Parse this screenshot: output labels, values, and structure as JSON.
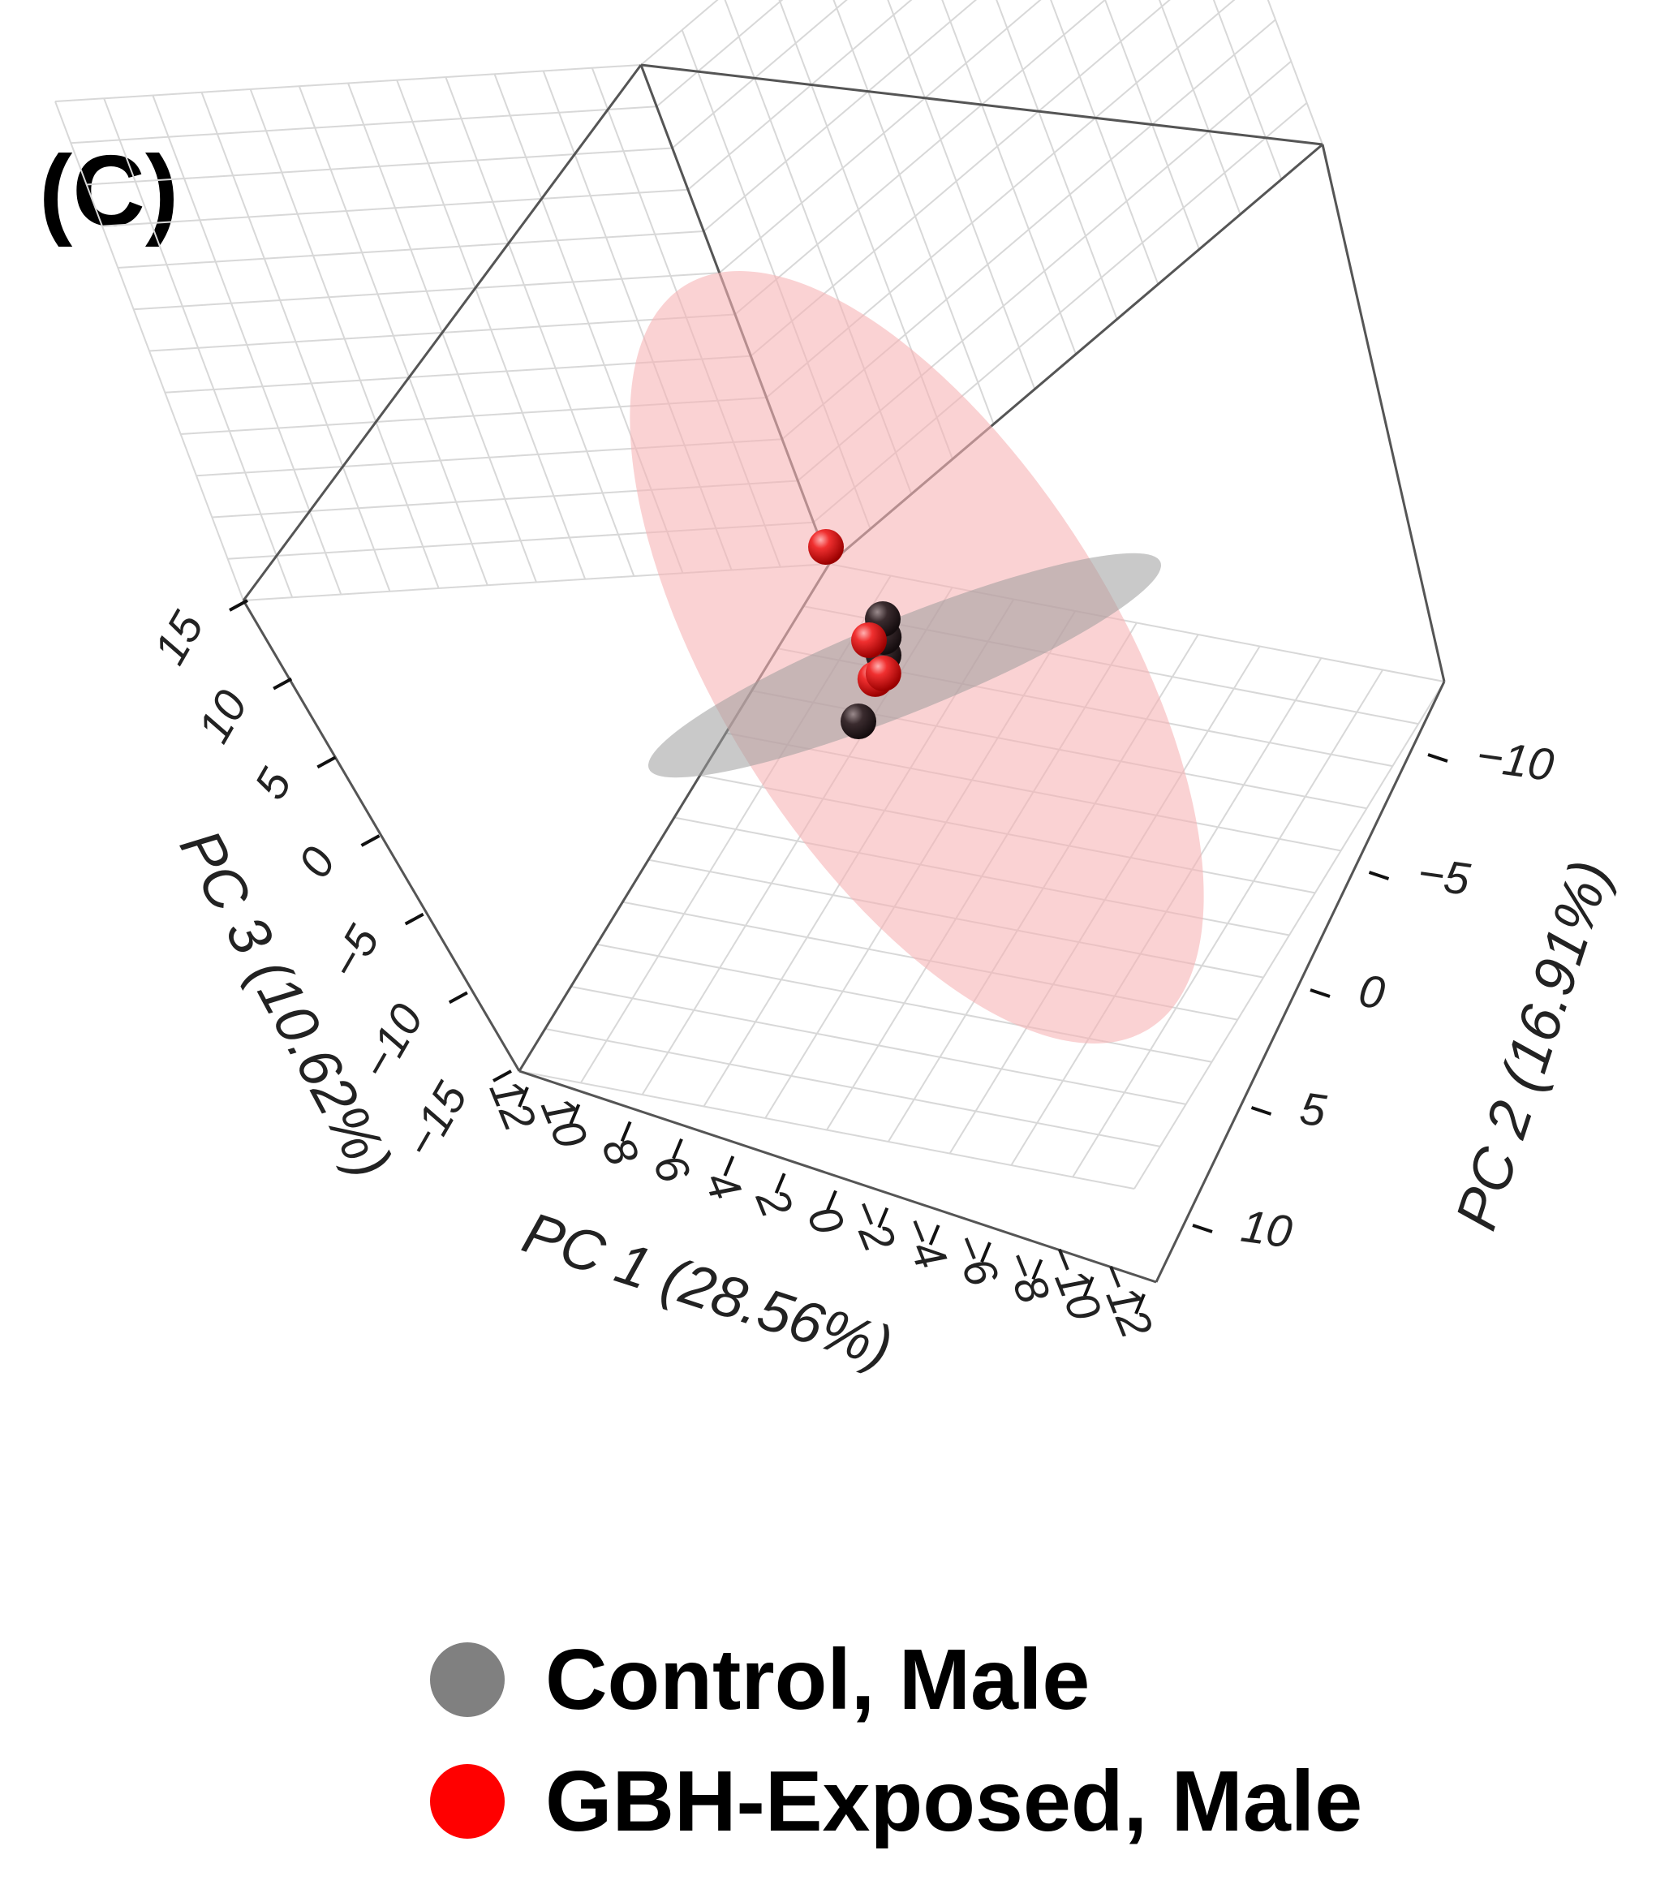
{
  "panel_label": "(C)",
  "chart_data": {
    "type": "scatter3d",
    "title": "",
    "axes": {
      "pc1": {
        "label": "PC 1 (28.56%)",
        "ticks": [
          "12",
          "10",
          "8",
          "6",
          "4",
          "2",
          "0",
          "−2",
          "−4",
          "−6",
          "−8",
          "−10",
          "−12"
        ],
        "range": [
          12,
          -12
        ]
      },
      "pc2": {
        "label": "PC 2 (16.91%)",
        "ticks": [
          "−10",
          "−5",
          "0",
          "5",
          "10"
        ],
        "range": [
          -12,
          12
        ]
      },
      "pc3": {
        "label": "PC 3 (10.62%)",
        "ticks": [
          "15",
          "10",
          "5",
          "0",
          "−5",
          "−10",
          "−15"
        ],
        "range": [
          15,
          -15
        ]
      }
    },
    "series": [
      {
        "name": "Control, Male",
        "color": "#808080",
        "marker_color": "#3a2b2e",
        "points": [
          {
            "pc1": 0.5,
            "pc2": -0.5,
            "pc3": 0.0
          },
          {
            "pc1": 0.2,
            "pc2": -1.0,
            "pc3": 0.5
          },
          {
            "pc1": 3.0,
            "pc2": 0.0,
            "pc3": -2.0
          },
          {
            "pc1": 0.0,
            "pc2": -1.5,
            "pc3": 1.0
          }
        ]
      },
      {
        "name": "GBH-Exposed, Male",
        "color": "#ff0000",
        "marker_color": "#e02020",
        "points": [
          {
            "pc1": 3.0,
            "pc2": -5.0,
            "pc3": 3.0
          },
          {
            "pc1": 1.5,
            "pc2": -1.0,
            "pc3": 0.5
          },
          {
            "pc1": 1.8,
            "pc2": 0.5,
            "pc3": -0.5
          },
          {
            "pc1": 0.8,
            "pc2": 0.0,
            "pc3": -0.5
          }
        ]
      }
    ],
    "ellipses": [
      {
        "series": "GBH-Exposed, Male",
        "color": "#f6b4b6"
      },
      {
        "series": "Control, Male",
        "color": "#9c9c9c"
      }
    ]
  },
  "legend": {
    "items": [
      {
        "label": "Control, Male",
        "color": "#808080"
      },
      {
        "label": "GBH-Exposed, Male",
        "color": "#ff0000"
      }
    ]
  }
}
